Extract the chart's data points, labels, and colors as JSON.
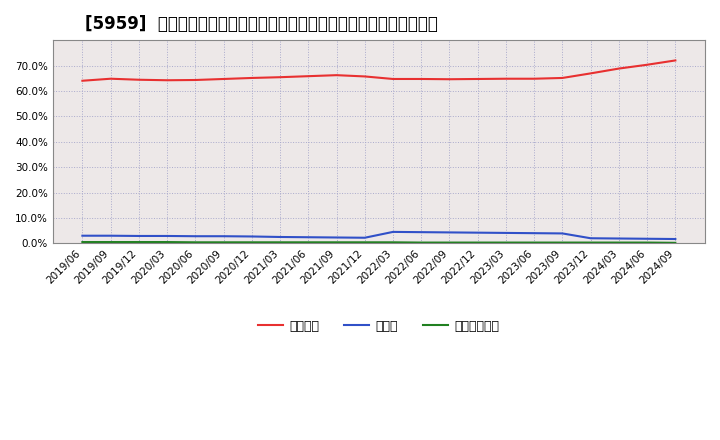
{
  "title": "[5959]  自己資本、のれん、繰延税金資産の総資産に対する比率の推移",
  "x_labels": [
    "2019/06",
    "2019/09",
    "2019/12",
    "2020/03",
    "2020/06",
    "2020/09",
    "2020/12",
    "2021/03",
    "2021/06",
    "2021/09",
    "2021/12",
    "2022/03",
    "2022/06",
    "2022/09",
    "2022/12",
    "2023/03",
    "2023/06",
    "2023/09",
    "2023/12",
    "2024/03",
    "2024/06",
    "2024/09"
  ],
  "equity": [
    0.64,
    0.648,
    0.644,
    0.642,
    0.643,
    0.647,
    0.651,
    0.654,
    0.658,
    0.662,
    0.657,
    0.647,
    0.647,
    0.646,
    0.647,
    0.648,
    0.648,
    0.651,
    0.669,
    0.688,
    0.703,
    0.72
  ],
  "goodwill": [
    0.03,
    0.03,
    0.029,
    0.029,
    0.028,
    0.028,
    0.027,
    0.025,
    0.024,
    0.023,
    0.022,
    0.045,
    0.044,
    0.043,
    0.042,
    0.041,
    0.04,
    0.039,
    0.02,
    0.019,
    0.018,
    0.017
  ],
  "deferred_tax": [
    0.005,
    0.005,
    0.005,
    0.005,
    0.004,
    0.004,
    0.004,
    0.004,
    0.004,
    0.004,
    0.004,
    0.004,
    0.003,
    0.003,
    0.003,
    0.003,
    0.003,
    0.003,
    0.003,
    0.003,
    0.003,
    0.002
  ],
  "equity_color": "#e83030",
  "goodwill_color": "#3050c8",
  "deferred_tax_color": "#208020",
  "background_color": "#ffffff",
  "grid_color": "#aaaacc",
  "plot_bg_color": "#ede8e8",
  "ylim": [
    0.0,
    0.8
  ],
  "yticks": [
    0.0,
    0.1,
    0.2,
    0.3,
    0.4,
    0.5,
    0.6,
    0.7
  ],
  "legend_labels": [
    "自己資本",
    "のれん",
    "繰延税金資産"
  ],
  "title_fontsize": 12,
  "axis_fontsize": 7.5,
  "legend_fontsize": 9
}
